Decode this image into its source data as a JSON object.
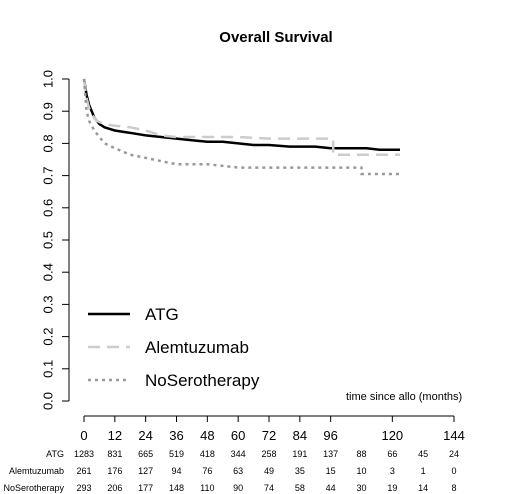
{
  "chart_data": {
    "type": "line",
    "title": "Overall Survival",
    "xlabel": "time since allo (months)",
    "ylabel": "",
    "xlim": [
      0,
      144
    ],
    "ylim": [
      0,
      1
    ],
    "xticks": [
      0,
      12,
      24,
      36,
      48,
      60,
      72,
      84,
      96,
      120,
      144
    ],
    "yticks": [
      "0.0",
      "0.1",
      "0.2",
      "0.3",
      "0.4",
      "0.5",
      "0.6",
      "0.7",
      "0.8",
      "0.9",
      "1.0"
    ],
    "legend_position": "bottom-left",
    "grid": false,
    "series": [
      {
        "name": "ATG",
        "color": "#000000",
        "style": "solid",
        "points": [
          [
            0,
            1.0
          ],
          [
            1,
            0.95
          ],
          [
            2,
            0.92
          ],
          [
            3,
            0.9
          ],
          [
            4,
            0.88
          ],
          [
            6,
            0.86
          ],
          [
            8,
            0.85
          ],
          [
            10,
            0.845
          ],
          [
            12,
            0.84
          ],
          [
            16,
            0.835
          ],
          [
            20,
            0.83
          ],
          [
            24,
            0.825
          ],
          [
            30,
            0.82
          ],
          [
            36,
            0.815
          ],
          [
            42,
            0.81
          ],
          [
            48,
            0.805
          ],
          [
            54,
            0.805
          ],
          [
            60,
            0.8
          ],
          [
            66,
            0.795
          ],
          [
            72,
            0.795
          ],
          [
            80,
            0.79
          ],
          [
            90,
            0.79
          ],
          [
            96,
            0.785
          ],
          [
            106,
            0.785
          ],
          [
            110,
            0.785
          ],
          [
            115,
            0.78
          ],
          [
            123,
            0.78
          ]
        ]
      },
      {
        "name": "Alemtuzumab",
        "color": "#cccccc",
        "style": "dashed",
        "points": [
          [
            0,
            1.0
          ],
          [
            1,
            0.94
          ],
          [
            2,
            0.91
          ],
          [
            3,
            0.89
          ],
          [
            5,
            0.87
          ],
          [
            8,
            0.86
          ],
          [
            12,
            0.855
          ],
          [
            18,
            0.85
          ],
          [
            24,
            0.84
          ],
          [
            30,
            0.825
          ],
          [
            36,
            0.82
          ],
          [
            48,
            0.82
          ],
          [
            60,
            0.82
          ],
          [
            72,
            0.815
          ],
          [
            84,
            0.815
          ],
          [
            97,
            0.815
          ],
          [
            97,
            0.765
          ],
          [
            123,
            0.765
          ]
        ]
      },
      {
        "name": "NoSerotherapy",
        "color": "#999999",
        "style": "dotted",
        "points": [
          [
            0,
            1.0
          ],
          [
            1,
            0.9
          ],
          [
            2,
            0.87
          ],
          [
            4,
            0.84
          ],
          [
            6,
            0.82
          ],
          [
            8,
            0.8
          ],
          [
            12,
            0.785
          ],
          [
            18,
            0.765
          ],
          [
            24,
            0.755
          ],
          [
            30,
            0.745
          ],
          [
            36,
            0.735
          ],
          [
            48,
            0.735
          ],
          [
            54,
            0.73
          ],
          [
            60,
            0.725
          ],
          [
            72,
            0.725
          ],
          [
            84,
            0.725
          ],
          [
            96,
            0.725
          ],
          [
            108,
            0.725
          ],
          [
            108,
            0.705
          ],
          [
            123,
            0.705
          ]
        ]
      }
    ],
    "risk_table": {
      "times": [
        0,
        12,
        24,
        36,
        48,
        60,
        72,
        84,
        96,
        108,
        120,
        132,
        144
      ],
      "rows": [
        {
          "label": "ATG",
          "values": [
            "1283",
            "831",
            "665",
            "519",
            "418",
            "344",
            "258",
            "191",
            "137",
            "88",
            "66",
            "45",
            "24"
          ]
        },
        {
          "label": "Alemtuzumab",
          "values": [
            "261",
            "176",
            "127",
            "94",
            "76",
            "63",
            "49",
            "35",
            "15",
            "10",
            "3",
            "1",
            "0"
          ]
        },
        {
          "label": "NoSerotherapy",
          "values": [
            "293",
            "206",
            "177",
            "148",
            "110",
            "90",
            "74",
            "58",
            "44",
            "30",
            "19",
            "14",
            "8"
          ]
        }
      ]
    }
  }
}
